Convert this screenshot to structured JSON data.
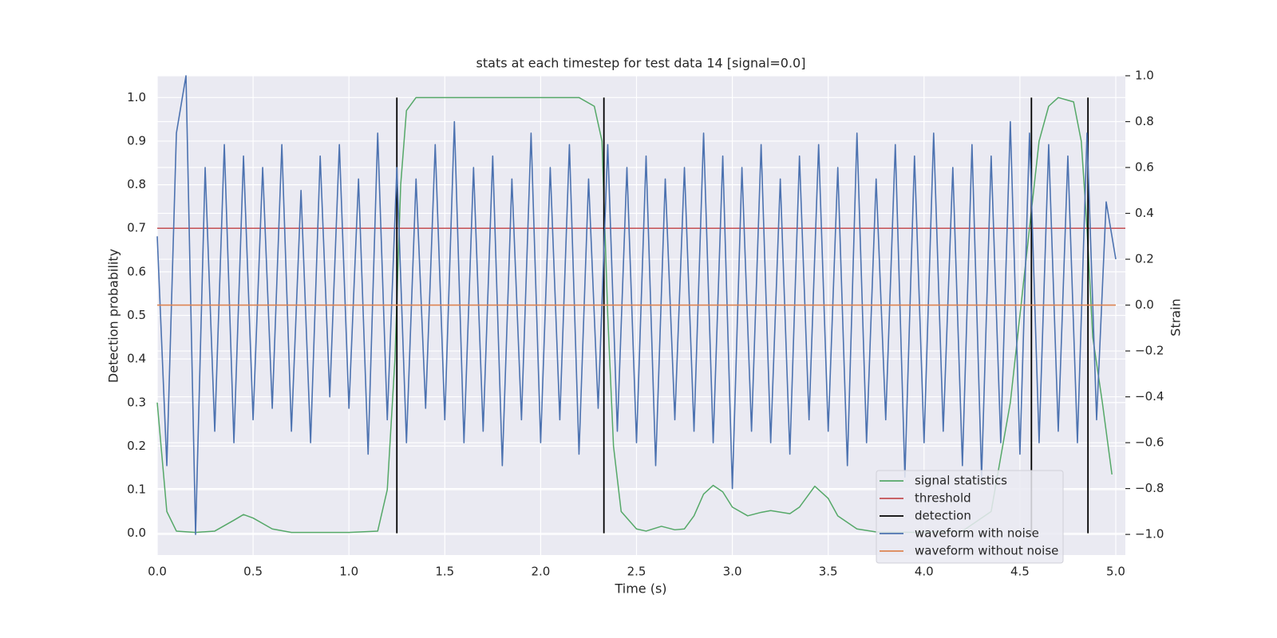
{
  "chart_data": {
    "type": "line",
    "title": "stats at each timestep for test data 14 [signal=0.0]",
    "x_label": "Time (s)",
    "y_label": "Detection probability",
    "y2_label": "Strain",
    "xlim": [
      0,
      5.05
    ],
    "ylim": [
      -0.05,
      1.05
    ],
    "y2lim": [
      -1.09,
      1.0
    ],
    "xticks": [
      {
        "value": 0,
        "label": "0.0"
      },
      0.5,
      {
        "value": 1,
        "label": "1.0"
      },
      1.5,
      {
        "value": 2,
        "label": "2.0"
      },
      2.5,
      {
        "value": 3,
        "label": "3.0"
      },
      3.5,
      {
        "value": 4,
        "label": "4.0"
      },
      4.5,
      {
        "value": 5,
        "label": "5.0"
      }
    ],
    "yticks": [
      {
        "value": 0,
        "label": "0.0"
      },
      0.1,
      0.2,
      0.3,
      0.4,
      0.5,
      0.6,
      0.7,
      0.8,
      0.9,
      {
        "value": 1,
        "label": "1.0"
      }
    ],
    "y2ticks": [
      {
        "value": -1,
        "label": "−1.0"
      },
      {
        "value": -0.8,
        "label": "−0.8"
      },
      {
        "value": -0.6,
        "label": "−0.6"
      },
      {
        "value": -0.4,
        "label": "−0.4"
      },
      {
        "value": -0.2,
        "label": "−0.2"
      },
      {
        "value": 0,
        "label": "0.0"
      },
      0.2,
      0.4,
      0.6,
      0.8,
      {
        "value": 1,
        "label": "1.0"
      }
    ],
    "grid": true,
    "legend": "lower right",
    "series": [
      {
        "name": "signal statistics",
        "color": "#55a868",
        "x": [
          0,
          0.02,
          0.05,
          0.1,
          0.2,
          0.3,
          0.4,
          0.45,
          0.5,
          0.6,
          0.7,
          1.0,
          1.15,
          1.2,
          1.24,
          1.27,
          1.3,
          1.35,
          2.2,
          2.28,
          2.32,
          2.35,
          2.38,
          2.42,
          2.5,
          2.55,
          2.63,
          2.7,
          2.75,
          2.8,
          2.85,
          2.9,
          2.95,
          3.0,
          3.08,
          3.15,
          3.2,
          3.3,
          3.35,
          3.43,
          3.5,
          3.55,
          3.65,
          3.75,
          4.0,
          4.2,
          4.35,
          4.45,
          4.55,
          4.6,
          4.65,
          4.7,
          4.78,
          4.82,
          4.85,
          4.88,
          4.93,
          4.98
        ],
        "values": [
          0.3,
          0.2,
          0.05,
          0.005,
          0.002,
          0.005,
          0.03,
          0.043,
          0.035,
          0.01,
          0.002,
          0.002,
          0.005,
          0.1,
          0.4,
          0.8,
          0.97,
          1.0,
          1.0,
          0.98,
          0.9,
          0.5,
          0.2,
          0.05,
          0.01,
          0.005,
          0.016,
          0.008,
          0.01,
          0.04,
          0.09,
          0.11,
          0.095,
          0.06,
          0.04,
          0.048,
          0.052,
          0.045,
          0.06,
          0.108,
          0.08,
          0.04,
          0.01,
          0.003,
          0.002,
          0.005,
          0.05,
          0.3,
          0.7,
          0.9,
          0.98,
          1.0,
          0.99,
          0.9,
          0.7,
          0.45,
          0.3,
          0.135
        ]
      },
      {
        "name": "threshold",
        "color": "#c44e52",
        "value": 0.7
      },
      {
        "name": "detection",
        "color": "#000000",
        "x": [
          1.25,
          2.33,
          4.56,
          4.855
        ],
        "span": [
          0,
          1
        ]
      },
      {
        "name": "waveform with noise",
        "color": "#4c72b0",
        "axis": "y2",
        "x": [
          0,
          0.05,
          0.1,
          0.15,
          0.2,
          0.25,
          0.3,
          0.35,
          0.4,
          0.45,
          0.5,
          0.55,
          0.6,
          0.65,
          0.7,
          0.75,
          0.8,
          0.85,
          0.9,
          0.95,
          1.0,
          1.05,
          1.1,
          1.15,
          1.2,
          1.25,
          1.3,
          1.35,
          1.4,
          1.45,
          1.5,
          1.55,
          1.6,
          1.65,
          1.7,
          1.75,
          1.8,
          1.85,
          1.9,
          1.95,
          2.0,
          2.05,
          2.1,
          2.15,
          2.2,
          2.25,
          2.3,
          2.35,
          2.4,
          2.45,
          2.5,
          2.55,
          2.6,
          2.65,
          2.7,
          2.75,
          2.8,
          2.85,
          2.9,
          2.95,
          3.0,
          3.05,
          3.1,
          3.15,
          3.2,
          3.25,
          3.3,
          3.35,
          3.4,
          3.45,
          3.5,
          3.55,
          3.6,
          3.65,
          3.7,
          3.75,
          3.8,
          3.85,
          3.9,
          3.95,
          4.0,
          4.05,
          4.1,
          4.15,
          4.2,
          4.25,
          4.3,
          4.35,
          4.4,
          4.45,
          4.5,
          4.55,
          4.6,
          4.65,
          4.7,
          4.75,
          4.8,
          4.85,
          4.9,
          4.95,
          5.0
        ],
        "values": [
          0.3,
          -0.7,
          0.75,
          1.0,
          -1.0,
          0.6,
          -0.55,
          0.7,
          -0.6,
          0.65,
          -0.5,
          0.6,
          -0.45,
          0.7,
          -0.55,
          0.5,
          -0.6,
          0.65,
          -0.4,
          0.7,
          -0.45,
          0.55,
          -0.65,
          0.75,
          -0.5,
          0.6,
          -0.6,
          0.55,
          -0.45,
          0.7,
          -0.5,
          0.8,
          -0.6,
          0.6,
          -0.55,
          0.65,
          -0.7,
          0.55,
          -0.5,
          0.75,
          -0.6,
          0.6,
          -0.5,
          0.7,
          -0.65,
          0.55,
          -0.45,
          0.7,
          -0.55,
          0.6,
          -0.6,
          0.65,
          -0.7,
          0.55,
          -0.5,
          0.6,
          -0.55,
          0.75,
          -0.6,
          0.65,
          -0.8,
          0.6,
          -0.55,
          0.7,
          -0.6,
          0.55,
          -0.65,
          0.65,
          -0.5,
          0.7,
          -0.55,
          0.6,
          -0.7,
          0.75,
          -0.6,
          0.55,
          -0.5,
          0.7,
          -0.75,
          0.65,
          -0.6,
          0.75,
          -0.55,
          0.6,
          -0.7,
          0.7,
          -0.75,
          0.65,
          -0.6,
          0.8,
          -0.65,
          0.75,
          -0.6,
          0.7,
          -0.55,
          0.65,
          -0.6,
          0.75,
          -0.5,
          0.45,
          0.2
        ]
      },
      {
        "name": "waveform without noise",
        "color": "#dd8452",
        "axis": "y2",
        "x": [
          0,
          5.0
        ],
        "values": [
          0,
          0
        ]
      }
    ]
  }
}
